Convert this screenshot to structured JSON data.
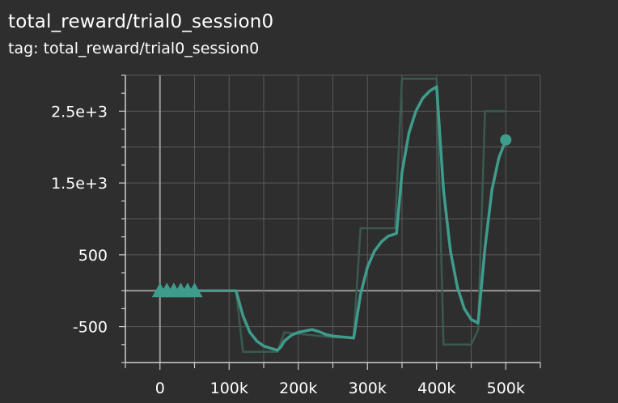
{
  "header": {
    "title": "total_reward/trial0_session0",
    "subtitle": "tag: total_reward/trial0_session0"
  },
  "colors": {
    "background": "#2e2e2e",
    "grid": "#5a5a5a",
    "zero_line": "#9a9a9a",
    "axis": "#cfcfcf",
    "series": "#3f9c8c",
    "raw_series": "#3a5a50"
  },
  "chart_data": {
    "type": "line",
    "title": "total_reward/trial0_session0",
    "subtitle": "tag: total_reward/trial0_session0",
    "xlabel": "",
    "ylabel": "",
    "xlim": [
      -50000,
      550000
    ],
    "ylim": [
      -1000,
      3000
    ],
    "grid": true,
    "x_ticks": [
      0,
      100000,
      200000,
      300000,
      400000,
      500000
    ],
    "x_tick_labels": [
      "0",
      "100k",
      "200k",
      "300k",
      "400k",
      "500k"
    ],
    "y_ticks": [
      -500,
      500,
      1500,
      2500
    ],
    "y_tick_labels": [
      "-500",
      "500",
      "1.5e+3",
      "2.5e+3"
    ],
    "series": [
      {
        "role": "smoothed",
        "x": [
          0,
          110000,
          120000,
          130000,
          140000,
          150000,
          160000,
          170000,
          175000,
          180000,
          190000,
          200000,
          210000,
          220000,
          230000,
          240000,
          250000,
          260000,
          270000,
          280000,
          290000,
          300000,
          310000,
          320000,
          330000,
          340000,
          342000,
          350000,
          360000,
          370000,
          380000,
          390000,
          400000,
          410000,
          420000,
          430000,
          440000,
          450000,
          460000,
          470000,
          480000,
          490000,
          500000
        ],
        "y": [
          0,
          0,
          -350,
          -580,
          -700,
          -770,
          -800,
          -830,
          -780,
          -700,
          -620,
          -580,
          -560,
          -540,
          -570,
          -610,
          -630,
          -640,
          -650,
          -660,
          -50,
          330,
          550,
          680,
          760,
          790,
          800,
          1650,
          2200,
          2500,
          2680,
          2780,
          2840,
          1400,
          550,
          50,
          -250,
          -400,
          -450,
          600,
          1400,
          1850,
          2100
        ]
      },
      {
        "role": "raw",
        "x": [
          0,
          110000,
          120000,
          170000,
          180000,
          250000,
          280000,
          290000,
          340000,
          350000,
          400000,
          410000,
          450000,
          460000,
          470000,
          500000
        ],
        "y": [
          0,
          0,
          -850,
          -850,
          -580,
          -650,
          -650,
          870,
          870,
          2950,
          2950,
          -750,
          -750,
          -550,
          2500,
          2500
        ]
      }
    ],
    "markers": {
      "triangles_x": [
        0,
        10000,
        20000,
        30000,
        40000,
        50000
      ],
      "triangles_y": 0,
      "end_point": {
        "x": 500000,
        "y": 2100
      }
    }
  }
}
